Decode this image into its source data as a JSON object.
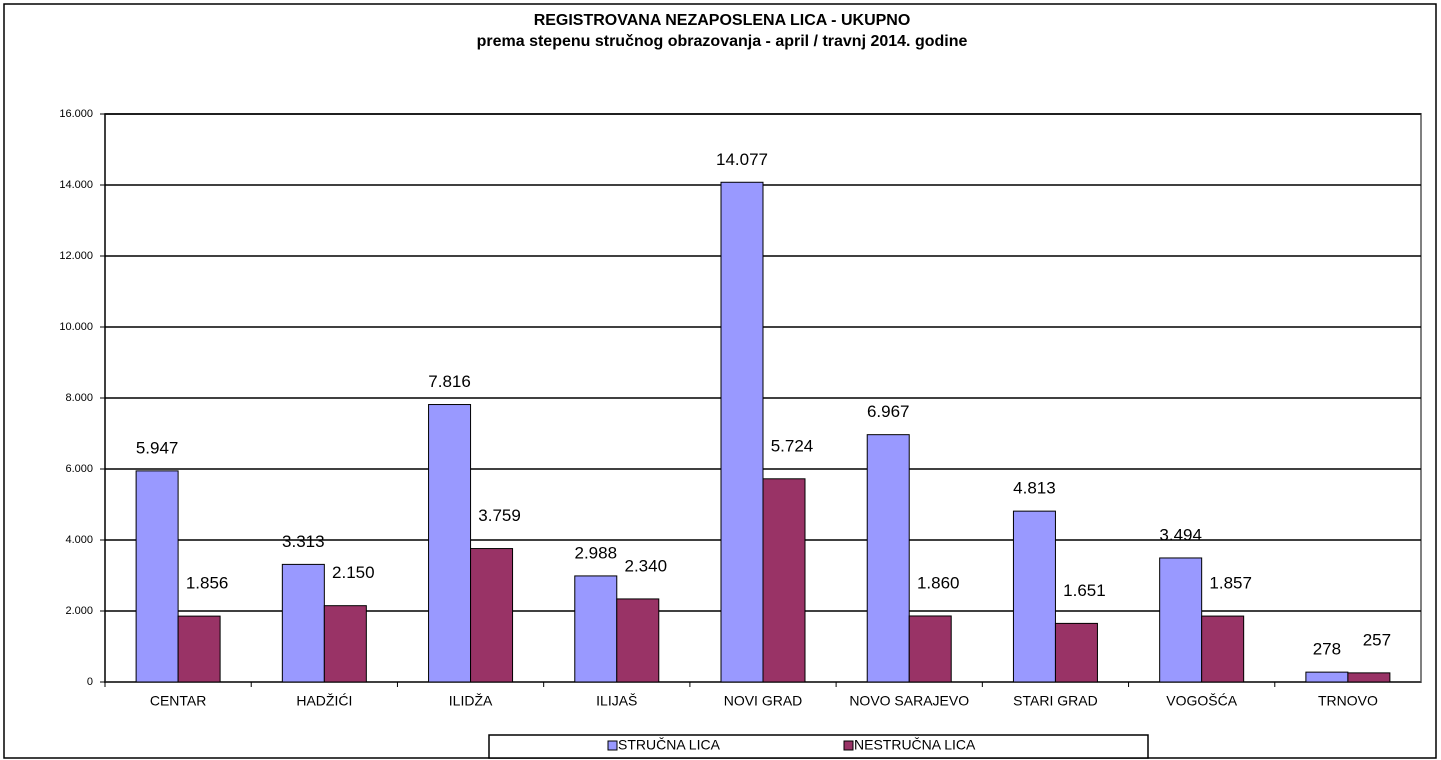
{
  "chart_data": {
    "type": "bar",
    "title": "REGISTROVANA NEZAPOSLENA LICA - UKUPNO",
    "subtitle": "prema stepenu stručnog obrazovanja - april / travnj 2014. godine",
    "categories": [
      "CENTAR",
      "HADŽIĆI",
      "ILIDŽA",
      "ILIJAŠ",
      "NOVI GRAD",
      "NOVO SARAJEVO",
      "STARI GRAD",
      "VOGOŠĆA",
      "TRNOVO"
    ],
    "series": [
      {
        "name": "STRUČNA LICA",
        "color": "#9999ff",
        "values": [
          5947,
          3313,
          7816,
          2988,
          14077,
          6967,
          4813,
          3494,
          278
        ],
        "value_labels": [
          "5.947",
          "3.313",
          "7.816",
          "2.988",
          "14.077",
          "6.967",
          "4.813",
          "3.494",
          "278"
        ]
      },
      {
        "name": "NESTRUČNA LICA",
        "color": "#993366",
        "values": [
          1856,
          2150,
          3759,
          2340,
          5724,
          1860,
          1651,
          1857,
          257
        ],
        "value_labels": [
          "1.856",
          "2.150",
          "3.759",
          "2.340",
          "5.724",
          "1.860",
          "1.651",
          "1.857",
          "257"
        ]
      }
    ],
    "ylim": [
      0,
      16000
    ],
    "yticks": [
      0,
      {
        "value": 2000,
        "label": "2.000"
      },
      {
        "value": 4000,
        "label": "4.000"
      },
      {
        "value": 6000,
        "label": "6.000"
      },
      {
        "value": 8000,
        "label": "8.000"
      },
      {
        "value": 10000,
        "label": "10.000"
      },
      {
        "value": 12000,
        "label": "12.000"
      },
      {
        "value": 14000,
        "label": "14.000"
      },
      {
        "value": 16000,
        "label": "16.000"
      }
    ],
    "grid": true,
    "legend": "bottom"
  }
}
